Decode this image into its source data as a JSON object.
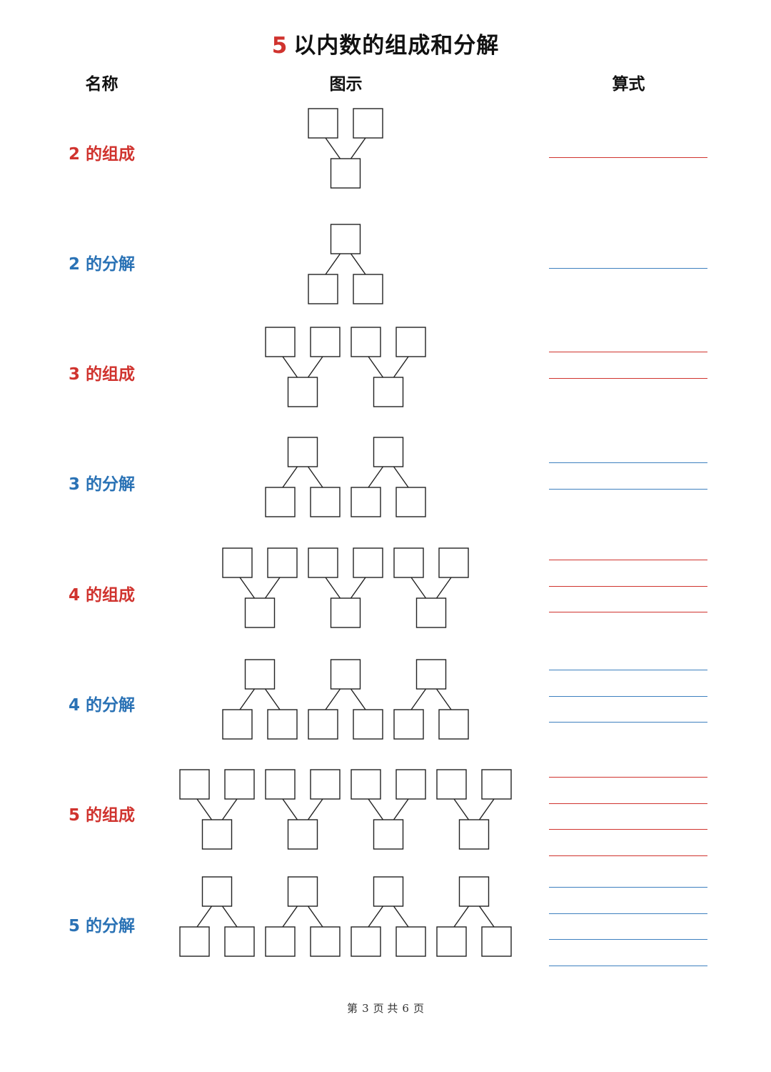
{
  "title": {
    "number": "5",
    "text": "以内数的组成和分解"
  },
  "headers": {
    "name": "名称",
    "diagram": "图示",
    "formula": "算式"
  },
  "rows": [
    {
      "label": "2 的组成",
      "type": "composition",
      "count": 1,
      "lines": 1
    },
    {
      "label": "2 的分解",
      "type": "decomposition",
      "count": 1,
      "lines": 1
    },
    {
      "label": "3 的组成",
      "type": "composition",
      "count": 2,
      "lines": 2
    },
    {
      "label": "3 的分解",
      "type": "decomposition",
      "count": 2,
      "lines": 2
    },
    {
      "label": "4 的组成",
      "type": "composition",
      "count": 3,
      "lines": 3
    },
    {
      "label": "4 的分解",
      "type": "decomposition",
      "count": 3,
      "lines": 3
    },
    {
      "label": "5 的组成",
      "type": "composition",
      "count": 4,
      "lines": 4
    },
    {
      "label": "5 的分解",
      "type": "decomposition",
      "count": 4,
      "lines": 4
    }
  ],
  "colors": {
    "composition": "#d0332e",
    "decomposition": "#2a72b5"
  },
  "footer": {
    "prefix": "第",
    "page": "3",
    "middle": "页 共",
    "total": "6",
    "suffix": "页"
  }
}
